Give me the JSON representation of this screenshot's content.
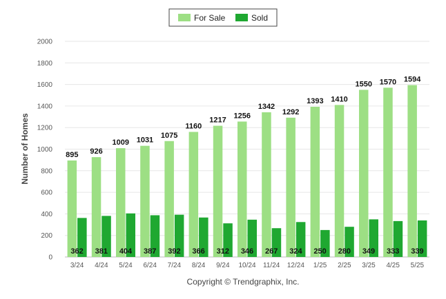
{
  "chart_data": {
    "type": "bar",
    "categories": [
      "3/24",
      "4/24",
      "5/24",
      "6/24",
      "7/24",
      "8/24",
      "9/24",
      "10/24",
      "11/24",
      "12/24",
      "1/25",
      "2/25",
      "3/25",
      "4/25",
      "5/25"
    ],
    "series": [
      {
        "name": "For Sale",
        "color": "#9ddf84",
        "values": [
          895,
          926,
          1009,
          1031,
          1075,
          1160,
          1217,
          1256,
          1342,
          1292,
          1393,
          1410,
          1550,
          1570,
          1594
        ]
      },
      {
        "name": "Sold",
        "color": "#1fa831",
        "values": [
          362,
          381,
          404,
          387,
          392,
          366,
          312,
          346,
          267,
          324,
          250,
          280,
          349,
          333,
          339
        ]
      }
    ],
    "ylabel": "Number of Homes",
    "xlabel": "",
    "ylim": [
      0,
      2000
    ],
    "yticks": [
      0,
      200,
      400,
      600,
      800,
      1000,
      1200,
      1400,
      1600,
      1800,
      2000
    ],
    "legend": "top-center",
    "grid": true
  },
  "footer": {
    "copyright": "Copyright © Trendgraphix, Inc."
  }
}
